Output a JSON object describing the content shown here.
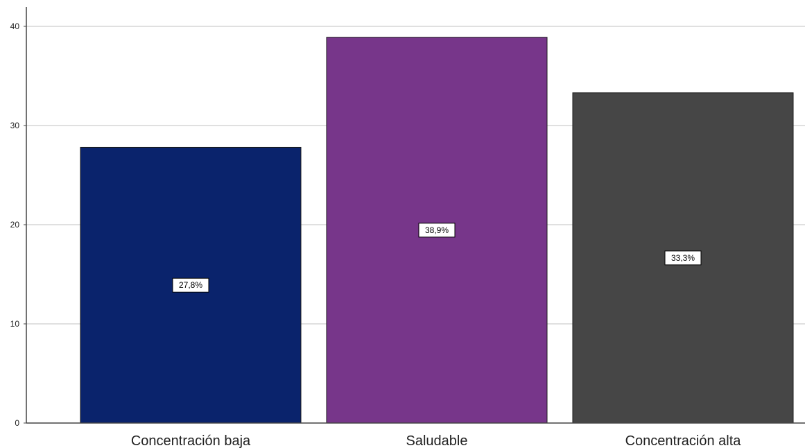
{
  "chart_data": {
    "type": "bar",
    "categories": [
      "Concentración baja",
      "Saludable",
      "Concentración alta"
    ],
    "values": [
      27.8,
      38.9,
      33.3
    ],
    "data_labels": [
      "27,8%",
      "38,9%",
      "33,3%"
    ],
    "colors": [
      "#0a236c",
      "#77368a",
      "#464646"
    ],
    "ylim": [
      0,
      40
    ],
    "yticks": [
      0,
      10,
      20,
      30,
      40
    ],
    "grid": true,
    "title": "",
    "xlabel": "",
    "ylabel": ""
  }
}
